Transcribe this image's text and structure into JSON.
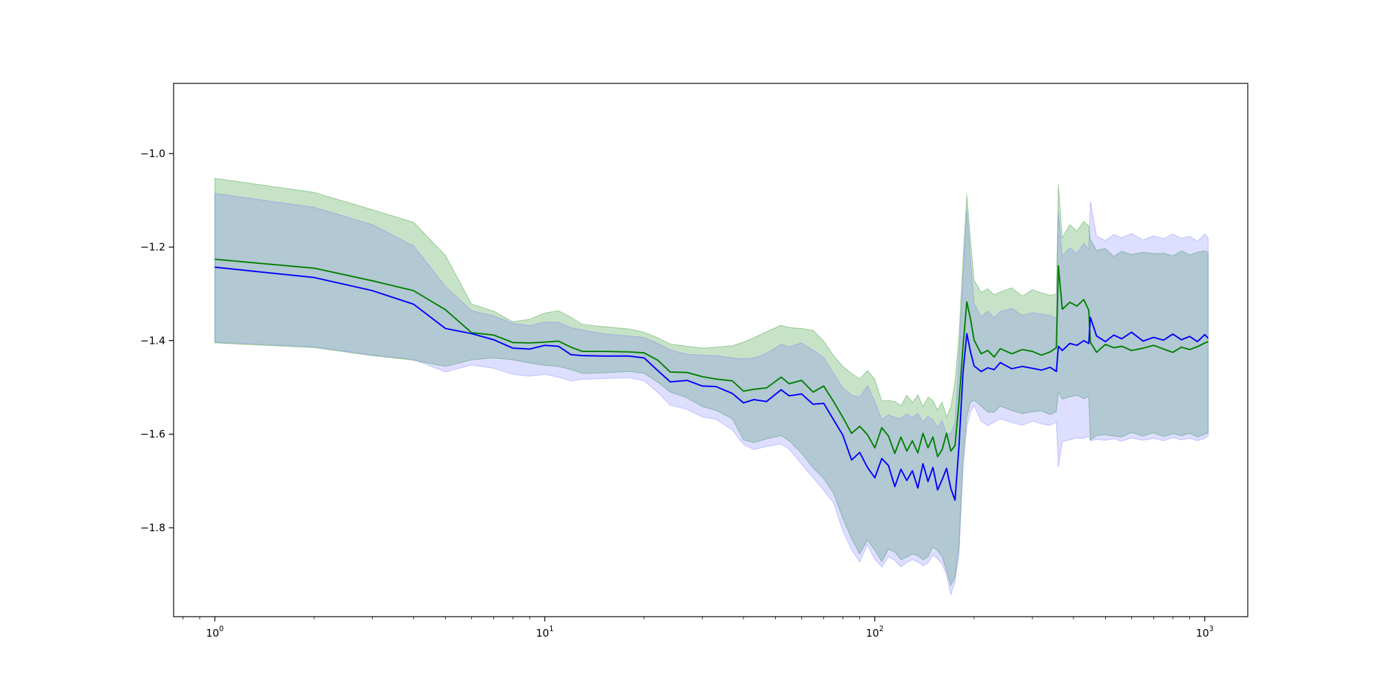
{
  "chart_data": {
    "type": "line",
    "title": "",
    "xlabel": "",
    "ylabel": "",
    "xscale": "log",
    "xlim": [
      0.75,
      1350
    ],
    "ylim": [
      -1.99,
      -0.85
    ],
    "grid": false,
    "x_ticks": [
      {
        "value": 1,
        "base": "10",
        "exp": "0"
      },
      {
        "value": 10,
        "base": "10",
        "exp": "1"
      },
      {
        "value": 100,
        "base": "10",
        "exp": "2"
      },
      {
        "value": 1000,
        "base": "10",
        "exp": "3"
      }
    ],
    "y_ticks": [
      {
        "value": -1.0,
        "label": "−1.0"
      },
      {
        "value": -1.2,
        "label": "−1.2"
      },
      {
        "value": -1.4,
        "label": "−1.4"
      },
      {
        "value": -1.6,
        "label": "−1.6"
      },
      {
        "value": -1.8,
        "label": "−1.8"
      }
    ],
    "series": [
      {
        "color": "#008000",
        "band_color": "#008000",
        "points": [
          [
            1,
            -1.226,
            -1.405,
            -1.053
          ],
          [
            2,
            -1.245,
            -1.415,
            -1.083
          ],
          [
            3,
            -1.272,
            -1.432,
            -1.12
          ],
          [
            4,
            -1.293,
            -1.442,
            -1.147
          ],
          [
            5,
            -1.334,
            -1.455,
            -1.218
          ],
          [
            6,
            -1.383,
            -1.441,
            -1.322
          ],
          [
            7,
            -1.388,
            -1.437,
            -1.337
          ],
          [
            8,
            -1.404,
            -1.441,
            -1.36
          ],
          [
            9,
            -1.405,
            -1.448,
            -1.354
          ],
          [
            10,
            -1.403,
            -1.453,
            -1.341
          ],
          [
            11,
            -1.401,
            -1.455,
            -1.336
          ],
          [
            12,
            -1.414,
            -1.462,
            -1.35
          ],
          [
            13,
            -1.423,
            -1.47,
            -1.365
          ],
          [
            15,
            -1.423,
            -1.469,
            -1.37
          ],
          [
            18,
            -1.424,
            -1.466,
            -1.375
          ],
          [
            20,
            -1.426,
            -1.47,
            -1.382
          ],
          [
            22,
            -1.442,
            -1.489,
            -1.394
          ],
          [
            24,
            -1.467,
            -1.51,
            -1.407
          ],
          [
            27,
            -1.468,
            -1.522,
            -1.412
          ],
          [
            30,
            -1.477,
            -1.541,
            -1.416
          ],
          [
            33,
            -1.482,
            -1.549,
            -1.414
          ],
          [
            37,
            -1.486,
            -1.567,
            -1.411
          ],
          [
            40,
            -1.508,
            -1.612,
            -1.403
          ],
          [
            43,
            -1.504,
            -1.618,
            -1.394
          ],
          [
            47,
            -1.501,
            -1.61,
            -1.381
          ],
          [
            52,
            -1.478,
            -1.603,
            -1.367
          ],
          [
            55,
            -1.492,
            -1.614,
            -1.372
          ],
          [
            60,
            -1.485,
            -1.641,
            -1.374
          ],
          [
            65,
            -1.51,
            -1.672,
            -1.378
          ],
          [
            70,
            -1.497,
            -1.695,
            -1.401
          ],
          [
            75,
            -1.53,
            -1.726,
            -1.432
          ],
          [
            80,
            -1.564,
            -1.78,
            -1.455
          ],
          [
            85,
            -1.598,
            -1.823,
            -1.47
          ],
          [
            90,
            -1.583,
            -1.856,
            -1.482
          ],
          [
            95,
            -1.601,
            -1.826,
            -1.464
          ],
          [
            100,
            -1.629,
            -1.848,
            -1.483
          ],
          [
            105,
            -1.586,
            -1.872,
            -1.529
          ],
          [
            110,
            -1.604,
            -1.846,
            -1.528
          ],
          [
            115,
            -1.641,
            -1.852,
            -1.53
          ],
          [
            120,
            -1.606,
            -1.868,
            -1.539
          ],
          [
            125,
            -1.636,
            -1.863,
            -1.517
          ],
          [
            130,
            -1.614,
            -1.856,
            -1.532
          ],
          [
            135,
            -1.64,
            -1.859,
            -1.516
          ],
          [
            140,
            -1.598,
            -1.869,
            -1.541
          ],
          [
            145,
            -1.629,
            -1.862,
            -1.521
          ],
          [
            150,
            -1.606,
            -1.841,
            -1.528
          ],
          [
            155,
            -1.648,
            -1.849,
            -1.548
          ],
          [
            160,
            -1.633,
            -1.862,
            -1.531
          ],
          [
            165,
            -1.598,
            -1.892,
            -1.563
          ],
          [
            170,
            -1.636,
            -1.923,
            -1.542
          ],
          [
            175,
            -1.624,
            -1.905,
            -1.488
          ],
          [
            180,
            -1.531,
            -1.838,
            -1.389
          ],
          [
            185,
            -1.414,
            -1.654,
            -1.232
          ],
          [
            190,
            -1.317,
            -1.562,
            -1.088
          ],
          [
            195,
            -1.354,
            -1.532,
            -1.187
          ],
          [
            200,
            -1.399,
            -1.527,
            -1.271
          ],
          [
            210,
            -1.428,
            -1.54,
            -1.297
          ],
          [
            220,
            -1.421,
            -1.553,
            -1.289
          ],
          [
            230,
            -1.435,
            -1.553,
            -1.302
          ],
          [
            240,
            -1.417,
            -1.54,
            -1.296
          ],
          [
            260,
            -1.428,
            -1.549,
            -1.287
          ],
          [
            280,
            -1.419,
            -1.556,
            -1.305
          ],
          [
            300,
            -1.423,
            -1.552,
            -1.291
          ],
          [
            320,
            -1.431,
            -1.55,
            -1.298
          ],
          [
            340,
            -1.424,
            -1.558,
            -1.303
          ],
          [
            355,
            -1.415,
            -1.552,
            -1.3
          ],
          [
            360,
            -1.24,
            -1.51,
            -1.066
          ],
          [
            370,
            -1.333,
            -1.525,
            -1.18
          ],
          [
            390,
            -1.318,
            -1.52,
            -1.152
          ],
          [
            410,
            -1.326,
            -1.517,
            -1.166
          ],
          [
            430,
            -1.312,
            -1.524,
            -1.145
          ],
          [
            445,
            -1.335,
            -1.52,
            -1.155
          ],
          [
            450,
            -1.403,
            -1.612,
            -1.184
          ],
          [
            470,
            -1.425,
            -1.603,
            -1.207
          ],
          [
            500,
            -1.408,
            -1.601,
            -1.203
          ],
          [
            530,
            -1.415,
            -1.604,
            -1.22
          ],
          [
            560,
            -1.412,
            -1.606,
            -1.209
          ],
          [
            600,
            -1.421,
            -1.596,
            -1.216
          ],
          [
            650,
            -1.416,
            -1.604,
            -1.211
          ],
          [
            700,
            -1.41,
            -1.597,
            -1.214
          ],
          [
            750,
            -1.418,
            -1.605,
            -1.213
          ],
          [
            800,
            -1.425,
            -1.599,
            -1.219
          ],
          [
            850,
            -1.414,
            -1.603,
            -1.208
          ],
          [
            900,
            -1.419,
            -1.598,
            -1.217
          ],
          [
            950,
            -1.413,
            -1.606,
            -1.211
          ],
          [
            1000,
            -1.405,
            -1.6,
            -1.208
          ],
          [
            1024,
            -1.402,
            -1.597,
            -1.212
          ]
        ]
      },
      {
        "color": "#0000ff",
        "band_color": "#6b6bff",
        "points": [
          [
            1,
            -1.243,
            -1.403,
            -1.085
          ],
          [
            2,
            -1.265,
            -1.413,
            -1.115
          ],
          [
            3,
            -1.293,
            -1.431,
            -1.152
          ],
          [
            4,
            -1.322,
            -1.44,
            -1.197
          ],
          [
            5,
            -1.374,
            -1.467,
            -1.284
          ],
          [
            6,
            -1.385,
            -1.452,
            -1.336
          ],
          [
            7,
            -1.398,
            -1.459,
            -1.347
          ],
          [
            8,
            -1.416,
            -1.472,
            -1.363
          ],
          [
            9,
            -1.418,
            -1.476,
            -1.368
          ],
          [
            10,
            -1.41,
            -1.472,
            -1.36
          ],
          [
            11,
            -1.412,
            -1.478,
            -1.361
          ],
          [
            12,
            -1.43,
            -1.486,
            -1.372
          ],
          [
            13,
            -1.432,
            -1.483,
            -1.377
          ],
          [
            15,
            -1.433,
            -1.481,
            -1.385
          ],
          [
            18,
            -1.433,
            -1.479,
            -1.39
          ],
          [
            20,
            -1.437,
            -1.486,
            -1.393
          ],
          [
            22,
            -1.464,
            -1.511,
            -1.406
          ],
          [
            24,
            -1.488,
            -1.538,
            -1.42
          ],
          [
            27,
            -1.485,
            -1.547,
            -1.429
          ],
          [
            30,
            -1.497,
            -1.563,
            -1.431
          ],
          [
            33,
            -1.498,
            -1.568,
            -1.432
          ],
          [
            37,
            -1.513,
            -1.591,
            -1.437
          ],
          [
            40,
            -1.533,
            -1.622,
            -1.439
          ],
          [
            43,
            -1.526,
            -1.633,
            -1.437
          ],
          [
            47,
            -1.53,
            -1.626,
            -1.427
          ],
          [
            52,
            -1.505,
            -1.621,
            -1.408
          ],
          [
            55,
            -1.518,
            -1.632,
            -1.413
          ],
          [
            60,
            -1.514,
            -1.664,
            -1.405
          ],
          [
            65,
            -1.536,
            -1.693,
            -1.42
          ],
          [
            70,
            -1.534,
            -1.72,
            -1.436
          ],
          [
            75,
            -1.569,
            -1.747,
            -1.47
          ],
          [
            80,
            -1.602,
            -1.807,
            -1.501
          ],
          [
            85,
            -1.655,
            -1.847,
            -1.516
          ],
          [
            90,
            -1.639,
            -1.873,
            -1.521
          ],
          [
            95,
            -1.671,
            -1.836,
            -1.496
          ],
          [
            100,
            -1.693,
            -1.868,
            -1.53
          ],
          [
            105,
            -1.652,
            -1.884,
            -1.569
          ],
          [
            110,
            -1.667,
            -1.862,
            -1.558
          ],
          [
            115,
            -1.712,
            -1.87,
            -1.564
          ],
          [
            120,
            -1.675,
            -1.884,
            -1.566
          ],
          [
            125,
            -1.699,
            -1.874,
            -1.557
          ],
          [
            130,
            -1.678,
            -1.868,
            -1.564
          ],
          [
            135,
            -1.715,
            -1.873,
            -1.555
          ],
          [
            140,
            -1.663,
            -1.881,
            -1.574
          ],
          [
            145,
            -1.701,
            -1.875,
            -1.562
          ],
          [
            150,
            -1.671,
            -1.859,
            -1.569
          ],
          [
            155,
            -1.719,
            -1.866,
            -1.585
          ],
          [
            160,
            -1.697,
            -1.878,
            -1.571
          ],
          [
            165,
            -1.673,
            -1.9,
            -1.598
          ],
          [
            170,
            -1.716,
            -1.943,
            -1.598
          ],
          [
            175,
            -1.741,
            -1.915,
            -1.574
          ],
          [
            180,
            -1.624,
            -1.856,
            -1.429
          ],
          [
            185,
            -1.47,
            -1.676,
            -1.266
          ],
          [
            190,
            -1.385,
            -1.584,
            -1.121
          ],
          [
            195,
            -1.424,
            -1.553,
            -1.229
          ],
          [
            200,
            -1.454,
            -1.539,
            -1.321
          ],
          [
            210,
            -1.466,
            -1.572,
            -1.349
          ],
          [
            220,
            -1.458,
            -1.582,
            -1.337
          ],
          [
            230,
            -1.462,
            -1.574,
            -1.351
          ],
          [
            240,
            -1.447,
            -1.567,
            -1.338
          ],
          [
            260,
            -1.46,
            -1.575,
            -1.331
          ],
          [
            280,
            -1.455,
            -1.581,
            -1.346
          ],
          [
            300,
            -1.459,
            -1.572,
            -1.34
          ],
          [
            320,
            -1.463,
            -1.578,
            -1.343
          ],
          [
            340,
            -1.457,
            -1.581,
            -1.346
          ],
          [
            355,
            -1.466,
            -1.574,
            -1.352
          ],
          [
            360,
            -1.412,
            -1.67,
            -1.127
          ],
          [
            370,
            -1.421,
            -1.616,
            -1.22
          ],
          [
            390,
            -1.406,
            -1.612,
            -1.201
          ],
          [
            410,
            -1.41,
            -1.608,
            -1.214
          ],
          [
            430,
            -1.4,
            -1.609,
            -1.192
          ],
          [
            445,
            -1.406,
            -1.604,
            -1.205
          ],
          [
            450,
            -1.35,
            -1.614,
            -1.102
          ],
          [
            470,
            -1.39,
            -1.611,
            -1.177
          ],
          [
            500,
            -1.402,
            -1.613,
            -1.186
          ],
          [
            530,
            -1.388,
            -1.61,
            -1.173
          ],
          [
            560,
            -1.396,
            -1.615,
            -1.18
          ],
          [
            600,
            -1.382,
            -1.608,
            -1.171
          ],
          [
            650,
            -1.401,
            -1.613,
            -1.185
          ],
          [
            700,
            -1.393,
            -1.609,
            -1.176
          ],
          [
            750,
            -1.399,
            -1.614,
            -1.182
          ],
          [
            800,
            -1.386,
            -1.607,
            -1.172
          ],
          [
            850,
            -1.398,
            -1.612,
            -1.181
          ],
          [
            900,
            -1.391,
            -1.609,
            -1.177
          ],
          [
            950,
            -1.402,
            -1.614,
            -1.187
          ],
          [
            1000,
            -1.387,
            -1.609,
            -1.172
          ],
          [
            1024,
            -1.395,
            -1.603,
            -1.18
          ]
        ]
      }
    ]
  }
}
